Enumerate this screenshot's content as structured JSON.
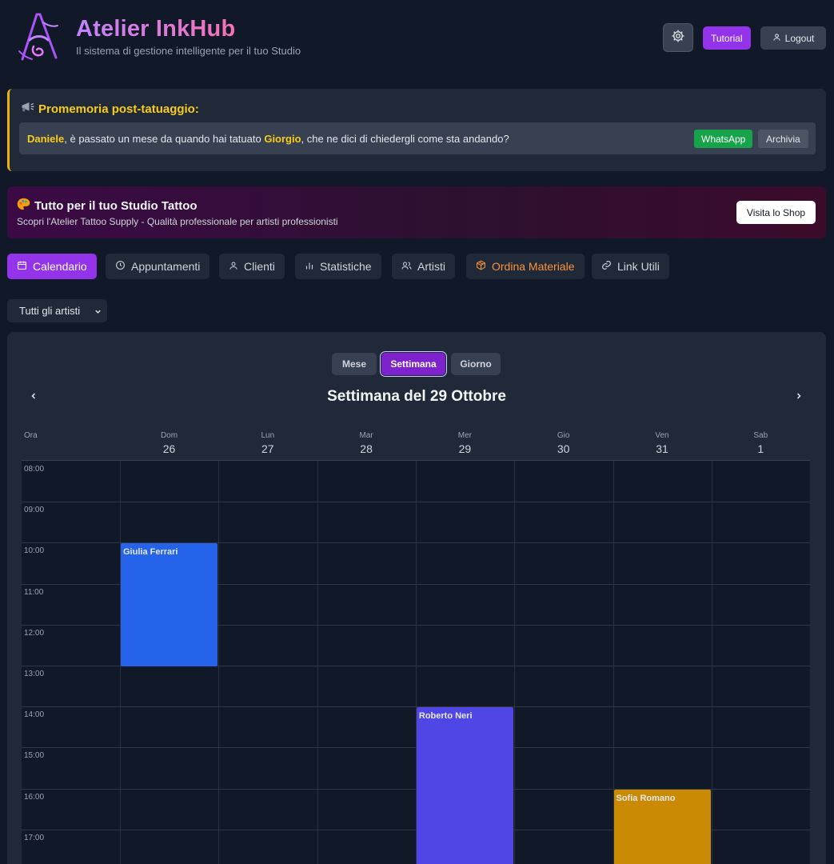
{
  "header": {
    "title": "Atelier InkHub",
    "subtitle": "Il sistema di gestione intelligente per il tuo Studio",
    "tutorial_label": "Tutorial",
    "logout_label": "Logout"
  },
  "reminder": {
    "title": "Promemoria post-tatuaggio:",
    "artist": "Daniele",
    "text_middle": ", è passato un mese da quando hai tatuato ",
    "client": "Giorgio",
    "text_end": ", che ne dici di chiedergli come sta andando?",
    "whatsapp_label": "WhatsApp",
    "archive_label": "Archivia"
  },
  "promo": {
    "title": "Tutto per il tuo Studio Tattoo",
    "subtitle": "Scopri l'Atelier Tattoo Supply - Qualità professionale per artisti professionisti",
    "button_label": "Visita lo Shop"
  },
  "tabs": [
    {
      "label": "Calendario",
      "icon": "calendar-icon",
      "active": true
    },
    {
      "label": "Appuntamenti",
      "icon": "clock-icon"
    },
    {
      "label": "Clienti",
      "icon": "user-icon"
    },
    {
      "label": "Statistiche",
      "icon": "bar-chart-icon"
    },
    {
      "label": "Artisti",
      "icon": "users-icon"
    },
    {
      "label": "Ordina Materiale",
      "icon": "package-icon",
      "accent": "#fb923c"
    },
    {
      "label": "Link Utili",
      "icon": "link-icon"
    }
  ],
  "artist_filter": {
    "selected": "Tutti gli artisti"
  },
  "calendar": {
    "views": [
      "Mese",
      "Settimana",
      "Giorno"
    ],
    "active_view": "Settimana",
    "title": "Settimana del 29 Ottobre",
    "time_col_label": "Ora",
    "days": [
      {
        "name": "Dom",
        "num": "26"
      },
      {
        "name": "Lun",
        "num": "27"
      },
      {
        "name": "Mar",
        "num": "28"
      },
      {
        "name": "Mer",
        "num": "29"
      },
      {
        "name": "Gio",
        "num": "30"
      },
      {
        "name": "Ven",
        "num": "31"
      },
      {
        "name": "Sab",
        "num": "1"
      }
    ],
    "hours": [
      "08:00",
      "09:00",
      "10:00",
      "11:00",
      "12:00",
      "13:00",
      "14:00",
      "15:00",
      "16:00",
      "17:00"
    ],
    "events": [
      {
        "client": "Giulia Ferrari",
        "day": 0,
        "start_hour": 10,
        "end_hour": 13,
        "color": "#2563eb"
      },
      {
        "client": "Roberto Neri",
        "day": 3,
        "start_hour": 14,
        "end_hour": 18,
        "color": "#4f46e5"
      },
      {
        "client": "Sofia Romano",
        "day": 5,
        "start_hour": 16,
        "end_hour": 18,
        "color": "#ca8a04"
      }
    ]
  },
  "colors": {
    "accent": "#9333ea",
    "warning": "#facc15",
    "success": "#16a34a",
    "background": "#111827",
    "panel": "#1f2937"
  }
}
